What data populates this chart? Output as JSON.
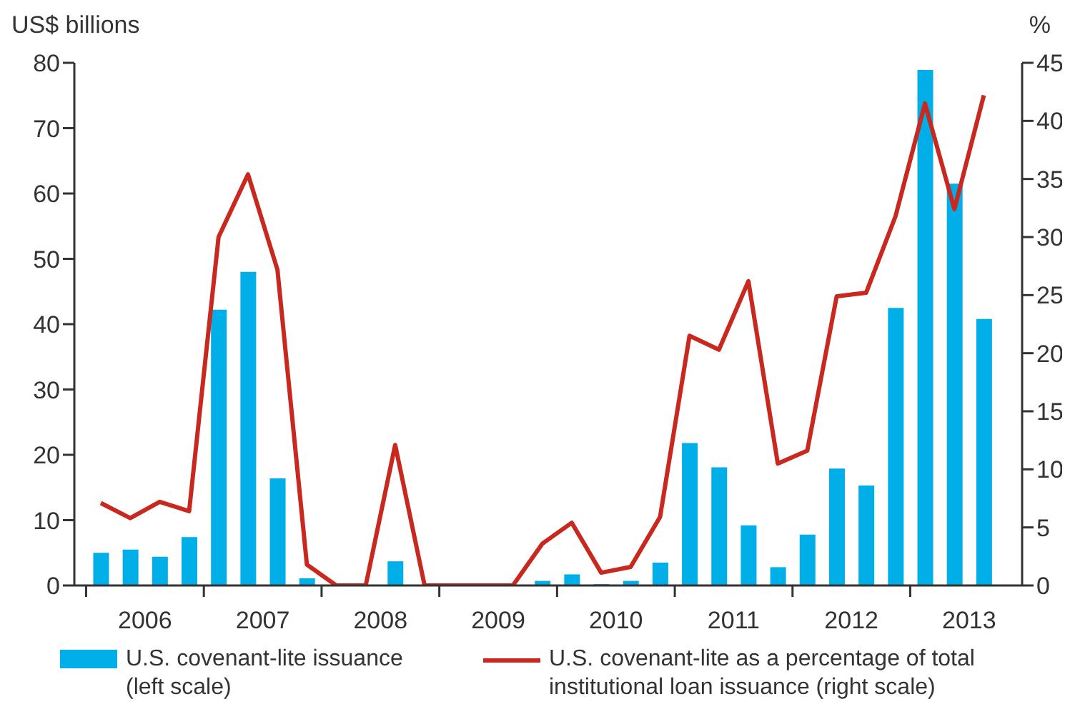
{
  "chart_data": {
    "type": "bar",
    "ylabel": "US$ billions",
    "y2label": "%",
    "x": [
      2006.125,
      2006.375,
      2006.625,
      2006.875,
      2007.125,
      2007.375,
      2007.625,
      2007.875,
      2008.125,
      2008.375,
      2008.625,
      2008.875,
      2009.125,
      2009.375,
      2009.625,
      2009.875,
      2010.125,
      2010.375,
      2010.625,
      2010.875,
      2011.125,
      2011.375,
      2011.625,
      2011.875,
      2012.125,
      2012.375,
      2012.625,
      2012.875,
      2013.125,
      2013.375,
      2013.625
    ],
    "xlim": [
      2005.9,
      2013.95
    ],
    "xticks": [
      {
        "value": 2006,
        "label": null
      },
      {
        "value": 2006.5,
        "label": "2006"
      },
      {
        "value": 2007,
        "label": null
      },
      {
        "value": 2007.5,
        "label": "2007"
      },
      {
        "value": 2008,
        "label": null
      },
      {
        "value": 2008.5,
        "label": "2008"
      },
      {
        "value": 2009,
        "label": null
      },
      {
        "value": 2009.5,
        "label": "2009"
      },
      {
        "value": 2010,
        "label": null
      },
      {
        "value": 2010.5,
        "label": "2010"
      },
      {
        "value": 2011,
        "label": null
      },
      {
        "value": 2011.5,
        "label": "2011"
      },
      {
        "value": 2012,
        "label": null
      },
      {
        "value": 2012.5,
        "label": "2012"
      },
      {
        "value": 2013,
        "label": null
      },
      {
        "value": 2013.5,
        "label": "2013"
      }
    ],
    "ylim": [
      0,
      80
    ],
    "yticks": [
      0,
      10,
      20,
      30,
      40,
      50,
      60,
      70,
      80
    ],
    "y2lim": [
      0,
      45
    ],
    "y2ticks": [
      0,
      5,
      10,
      15,
      20,
      25,
      30,
      35,
      40,
      45
    ],
    "legend": "bottom",
    "series": [
      {
        "name": "U.S. covenant-lite issuance (left scale)",
        "color": "#00aee8",
        "values": [
          5.0,
          5.5,
          4.4,
          7.4,
          42.2,
          48.0,
          16.4,
          1.1,
          0,
          0,
          3.7,
          0,
          0,
          0,
          0,
          0.7,
          1.7,
          0.2,
          0.7,
          3.5,
          21.8,
          18.1,
          9.2,
          2.8,
          7.8,
          17.9,
          15.3,
          42.5,
          78.9,
          61.5,
          40.8
        ]
      },
      {
        "name": "U.S. covenant-lite as a percentage of total institutional loan issuance (right scale)",
        "type": "line",
        "axis": "y2",
        "color": "#c8281e",
        "values": [
          7.1,
          5.8,
          7.2,
          6.4,
          30.0,
          35.4,
          27.2,
          1.8,
          0,
          0,
          12.1,
          0,
          0,
          0,
          0,
          3.6,
          5.4,
          1.1,
          1.6,
          5.9,
          21.5,
          20.3,
          26.2,
          10.5,
          11.6,
          24.9,
          25.2,
          31.8,
          41.5,
          32.4,
          42.2
        ]
      }
    ]
  }
}
